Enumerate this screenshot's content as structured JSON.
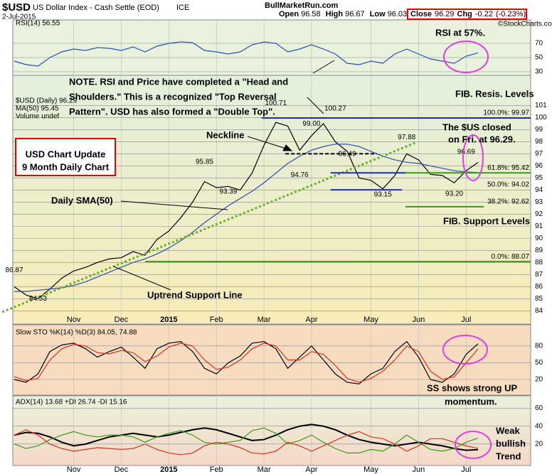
{
  "header": {
    "symbol": "$USD",
    "name": "US Dollar Index - Cash Settle (EOD)",
    "exchange": "ICE",
    "date": "2-Jul-2015",
    "site": "BullMarketRun.com",
    "credit": "©StockCharts.com",
    "quote": [
      {
        "label": "Open",
        "value": 96.58
      },
      {
        "label": "High",
        "value": 96.67
      },
      {
        "label": "Low",
        "value": 96.03
      }
    ],
    "close": {
      "label": "Close",
      "value": 96.29
    },
    "change": {
      "label": "Chg",
      "value": -0.22
    },
    "change_pct": {
      "value": -0.23,
      "label": "(-0.23%)"
    }
  },
  "chart_data": {
    "type": "line",
    "categories": [
      null,
      null,
      null,
      null,
      null,
      "Nov",
      null,
      null,
      null,
      "Dec",
      null,
      null,
      null,
      "2015",
      null,
      null,
      null,
      "Feb",
      null,
      null,
      null,
      "Mar",
      null,
      null,
      null,
      "Apr",
      null,
      null,
      null,
      null,
      "May",
      null,
      null,
      null,
      "Jun",
      null,
      null,
      null,
      "Jul",
      null
    ],
    "rsi": {
      "legend": "RSI(14) 56.55",
      "ylim": [
        25,
        103
      ],
      "yticks": [
        70,
        50,
        30
      ],
      "series": [
        {
          "color": "#2a4fc2",
          "values": [
            45,
            40,
            38,
            50,
            58,
            62,
            60,
            64,
            63,
            60,
            65,
            58,
            66,
            70,
            72,
            71,
            60,
            58,
            55,
            58,
            68,
            72,
            70,
            58,
            62,
            68,
            62,
            55,
            42,
            40,
            45,
            42,
            55,
            62,
            55,
            48,
            45,
            42,
            52,
            56.55
          ]
        }
      ]
    },
    "price": {
      "legend": [
        "$USD (Daily) 96.29",
        "MA(50) 95.45",
        "Volume undef"
      ],
      "ylim": [
        82.9,
        103.5
      ],
      "yticks": [
        84,
        85,
        86,
        87,
        88,
        89,
        90,
        91,
        92,
        93,
        94,
        95,
        96,
        97,
        98,
        99,
        100,
        101
      ],
      "series": [
        {
          "color": "#000000",
          "values": [
            86,
            85.3,
            85,
            85.8,
            86.7,
            87.3,
            87.6,
            88,
            88.3,
            88.4,
            88.9,
            88.6,
            89.9,
            90.6,
            91.7,
            93,
            94.7,
            94.2,
            94.3,
            94,
            95.4,
            97.7,
            99.6,
            99.3,
            97.3,
            98.5,
            99.5,
            98,
            97.2,
            95,
            94.8,
            94.1,
            95.2,
            97,
            96.5,
            95.3,
            95.2,
            94.6,
            95.6,
            96.29
          ]
        },
        {
          "color": "#2f4fb0",
          "values": [
            85.6,
            85.6,
            85.7,
            85.8,
            85.9,
            86.1,
            86.4,
            86.8,
            87.2,
            87.6,
            88,
            88.3,
            88.7,
            89.2,
            89.8,
            90.5,
            91.3,
            92,
            92.7,
            93.3,
            93.9,
            94.6,
            95.4,
            96.2,
            96.8,
            97.3,
            97.6,
            97.8,
            97.8,
            97.6,
            97.2,
            96.8,
            96.5,
            96.3,
            96.2,
            96,
            95.8,
            95.6,
            95.5,
            95.45
          ]
        }
      ],
      "price_labels": [
        {
          "at": 0,
          "value": 86.87,
          "label": "86.87"
        },
        {
          "at": 2,
          "value": 84.53,
          "label": "84.53"
        },
        {
          "at": 16,
          "value": 95.85,
          "label": "95.85"
        },
        {
          "at": 18,
          "value": 93.39,
          "label": "93.39"
        },
        {
          "at": 22,
          "value": 100.71,
          "label": "100.71"
        },
        {
          "at": 24,
          "value": 94.76,
          "label": "94.76"
        },
        {
          "at": 25,
          "value": 99,
          "label": "99.00"
        },
        {
          "at": 27,
          "value": 100.27,
          "label": "100.27"
        },
        {
          "at": 28,
          "value": 96.49,
          "label": "96.49"
        },
        {
          "at": 33,
          "value": 97.88,
          "label": "97.88"
        },
        {
          "at": 31,
          "value": 93.15,
          "label": "93.15"
        },
        {
          "at": 38,
          "value": 96.69,
          "label": "96.69"
        },
        {
          "at": 37,
          "value": 93.2,
          "label": "93.20"
        }
      ],
      "levels": [
        {
          "value": 99.97,
          "from": 20.8,
          "to": 43.5,
          "color": "#1a2fb0"
        },
        {
          "value": 95.42,
          "from": 26.6,
          "to": 32.9,
          "color": "#1a2fb0"
        },
        {
          "value": 94.02,
          "from": 26.6,
          "to": 32.6,
          "color": "#1a2fb0"
        },
        {
          "value": 97,
          "from": 22.8,
          "to": 30.5,
          "color": "#000000",
          "dash": true
        },
        {
          "value": 95.42,
          "from": 32.9,
          "to": 43.5,
          "color": "#3a9a1a"
        },
        {
          "value": 92.62,
          "from": 32.9,
          "to": 39.5,
          "color": "#3a9a1a"
        },
        {
          "value": 88.07,
          "from": 11,
          "to": 43.5,
          "color": "#3a9a1a"
        }
      ],
      "fib_labels": [
        {
          "value": 99.97,
          "label": "100.0%: 99.97"
        },
        {
          "value": 95.42,
          "label": "61.8%: 95.42"
        },
        {
          "value": 94.02,
          "label": "50.0%: 94.02"
        },
        {
          "value": 92.62,
          "label": "38.2%: 92.62"
        },
        {
          "value": 88.07,
          "label": "0.0%: 88.07"
        }
      ],
      "trendline": {
        "from": [
          -1,
          83.9
        ],
        "to": [
          33.7,
          97.9
        ],
        "color": "#6ab02a"
      }
    },
    "sto": {
      "legend": "Slow STO %K(14) %D(3) 84.05, 74.88",
      "ylim": [
        -8,
        118
      ],
      "yticks": [
        80,
        50,
        20
      ],
      "series": [
        {
          "color": "#000000",
          "values": [
            20,
            15,
            30,
            70,
            82,
            85,
            75,
            60,
            70,
            78,
            60,
            40,
            75,
            85,
            88,
            70,
            40,
            30,
            50,
            62,
            85,
            88,
            75,
            40,
            60,
            80,
            55,
            30,
            15,
            12,
            30,
            40,
            70,
            88,
            60,
            20,
            15,
            30,
            65,
            84.05
          ]
        },
        {
          "color": "#e0301e",
          "values": [
            25,
            18,
            22,
            55,
            75,
            83,
            80,
            68,
            66,
            72,
            68,
            52,
            62,
            78,
            85,
            80,
            55,
            38,
            42,
            55,
            75,
            85,
            80,
            55,
            55,
            70,
            65,
            45,
            22,
            15,
            22,
            35,
            55,
            80,
            70,
            35,
            20,
            25,
            50,
            74.88
          ]
        }
      ]
    },
    "adx": {
      "legend": "ADX(14) 13.68 +DI 26.74 -DI 15.16",
      "ylim": [
        -4,
        74
      ],
      "yticks": [
        60,
        40,
        20
      ],
      "series": [
        {
          "color": "#000000",
          "width": 2,
          "values": [
            30,
            33,
            32,
            28,
            22,
            18,
            20,
            24,
            28,
            30,
            32,
            30,
            28,
            30,
            33,
            36,
            38,
            36,
            32,
            28,
            24,
            25,
            30,
            36,
            40,
            42,
            40,
            36,
            30,
            25,
            22,
            20,
            18,
            20,
            22,
            20,
            18,
            15,
            13,
            13.68
          ]
        },
        {
          "color": "#3a9a1a",
          "values": [
            20,
            15,
            18,
            25,
            30,
            34,
            30,
            28,
            30,
            30,
            28,
            22,
            28,
            32,
            35,
            30,
            22,
            20,
            22,
            24,
            35,
            38,
            32,
            20,
            24,
            30,
            22,
            15,
            10,
            10,
            14,
            12,
            20,
            30,
            22,
            14,
            12,
            15,
            22,
            26.74
          ]
        },
        {
          "color": "#e0301e",
          "values": [
            30,
            36,
            30,
            20,
            15,
            12,
            14,
            16,
            15,
            14,
            15,
            20,
            14,
            10,
            8,
            10,
            18,
            22,
            20,
            16,
            10,
            9,
            12,
            22,
            18,
            12,
            18,
            24,
            30,
            34,
            28,
            26,
            20,
            12,
            18,
            26,
            26,
            22,
            18,
            15.16
          ]
        }
      ]
    }
  },
  "notes": {
    "head_shoulders": [
      "NOTE. RSI and Price have completed a \"Head and",
      "Shoulders.\" This is a recognized \"Top Reversal",
      "Pattern\". USD has also formed a \"Double Top\"."
    ],
    "rsi": "RSI at 57%.",
    "fib_resistance": "FIB. Resis. Levels",
    "neckline": "Neckline",
    "update": [
      "USD Chart Update",
      "9 Month Daily Chart"
    ],
    "closed": [
      "The $US closed",
      "on Fri. at 96.29."
    ],
    "sma": "Daily SMA(50)",
    "uptrend": "Uptrend Support Line",
    "fib_support": "FIB. Support Levels",
    "sto": [
      "SS shows strong UP",
      "momentum."
    ],
    "adx": [
      "Weak",
      "bullish",
      "Trend"
    ]
  }
}
